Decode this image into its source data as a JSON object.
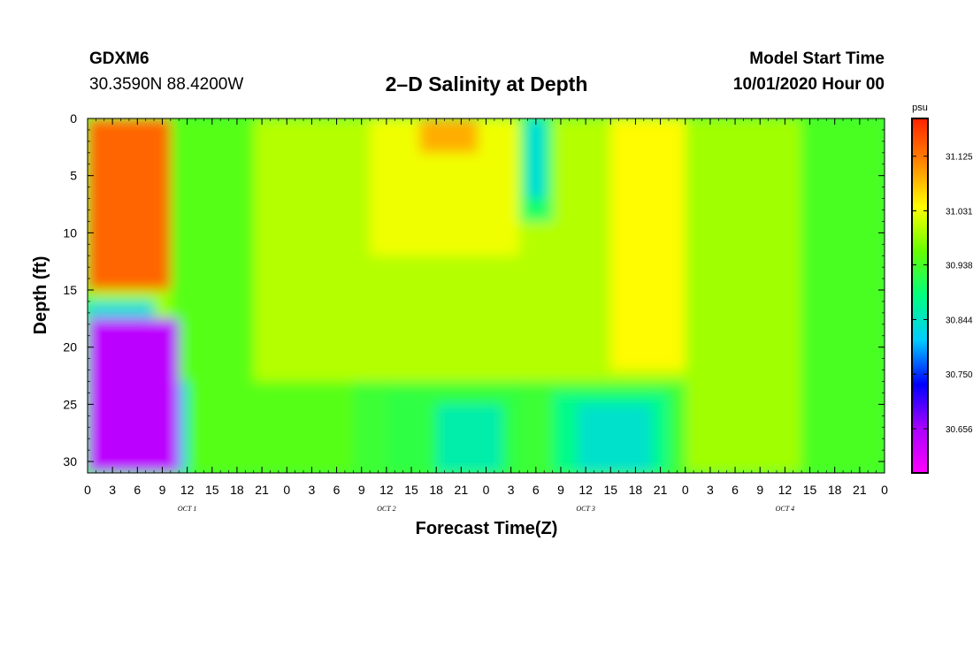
{
  "header": {
    "station": "GDXM6",
    "coords": "30.3590N 88.4200W",
    "title": "2–D Salinity at Depth",
    "model_start_label": "Model Start Time",
    "model_start_value": "10/01/2020 Hour 00"
  },
  "chart_data": {
    "type": "heatmap",
    "title": "2–D Salinity at Depth",
    "xlabel": "Forecast Time(Z)",
    "ylabel": "Depth (ft)",
    "x_range_hours": [
      0,
      96
    ],
    "ylim": [
      0,
      31
    ],
    "y_reversed": true,
    "x_tick_labels": [
      "0",
      "3",
      "6",
      "9",
      "12",
      "15",
      "18",
      "21",
      "0",
      "3",
      "6",
      "9",
      "12",
      "15",
      "18",
      "21",
      "0",
      "3",
      "6",
      "9",
      "12",
      "15",
      "18",
      "21",
      "0",
      "3",
      "6",
      "9",
      "12",
      "15",
      "18",
      "21",
      "0"
    ],
    "y_ticks": [
      0,
      5,
      10,
      15,
      20,
      25,
      30
    ],
    "y_tick_labels": [
      "0",
      "5",
      "10",
      "15",
      "20",
      "25",
      "30"
    ],
    "day_labels": [
      {
        "hour": 12,
        "label": "OCT 1"
      },
      {
        "hour": 36,
        "label": "OCT 2"
      },
      {
        "hour": 60,
        "label": "OCT 3"
      },
      {
        "hour": 84,
        "label": "OCT 4"
      }
    ],
    "colorbar": {
      "unit": "psu",
      "range": [
        30.58,
        31.19
      ],
      "tick_values": [
        31.125,
        31.031,
        30.938,
        30.844,
        30.75,
        30.656
      ],
      "tick_labels": [
        "31.125",
        "31.031",
        "30.938",
        "30.844",
        "30.750",
        "30.656"
      ],
      "colors": [
        "#ff00ff",
        "#aa00ff",
        "#0000ff",
        "#00ccff",
        "#00ff80",
        "#66ff00",
        "#ffff00",
        "#ff8800",
        "#ff2200"
      ]
    },
    "field_regions": [
      {
        "x": [
          0,
          96
        ],
        "depth": [
          0,
          31
        ],
        "value": 30.93,
        "comment_free": true
      },
      {
        "x": [
          10,
          32
        ],
        "depth": [
          0,
          31
        ],
        "value": 30.95
      },
      {
        "x": [
          20,
          72
        ],
        "depth": [
          0,
          23
        ],
        "value": 31.0
      },
      {
        "x": [
          34,
          52
        ],
        "depth": [
          0,
          12
        ],
        "value": 31.03
      },
      {
        "x": [
          40,
          47
        ],
        "depth": [
          0,
          3
        ],
        "value": 31.09
      },
      {
        "x": [
          63,
          72
        ],
        "depth": [
          0,
          22
        ],
        "value": 31.04
      },
      {
        "x": [
          72,
          86
        ],
        "depth": [
          0,
          31
        ],
        "value": 30.99
      },
      {
        "x": [
          86,
          96
        ],
        "depth": [
          0,
          31
        ],
        "value": 30.94
      },
      {
        "x": [
          52,
          56
        ],
        "depth": [
          0,
          9
        ],
        "value": 30.9
      },
      {
        "x": [
          53,
          55
        ],
        "depth": [
          0,
          7
        ],
        "value": 30.83
      },
      {
        "x": [
          36,
          52
        ],
        "depth": [
          24,
          31
        ],
        "value": 30.92
      },
      {
        "x": [
          42,
          50
        ],
        "depth": [
          25,
          31
        ],
        "value": 30.86
      },
      {
        "x": [
          56,
          70
        ],
        "depth": [
          24,
          31
        ],
        "value": 30.88
      },
      {
        "x": [
          59,
          68
        ],
        "depth": [
          25,
          31
        ],
        "value": 30.84
      },
      {
        "x": [
          0,
          10
        ],
        "depth": [
          0,
          15
        ],
        "value": 31.14
      },
      {
        "x": [
          0,
          10
        ],
        "depth": [
          15,
          17.5
        ],
        "value": 30.99
      },
      {
        "x": [
          0,
          8
        ],
        "depth": [
          16,
          17.5
        ],
        "value": 30.83
      },
      {
        "x": [
          0,
          11
        ],
        "depth": [
          17.5,
          31
        ],
        "value": 30.64
      },
      {
        "x": [
          11,
          12
        ],
        "depth": [
          23,
          31
        ],
        "value": 30.82
      }
    ]
  }
}
